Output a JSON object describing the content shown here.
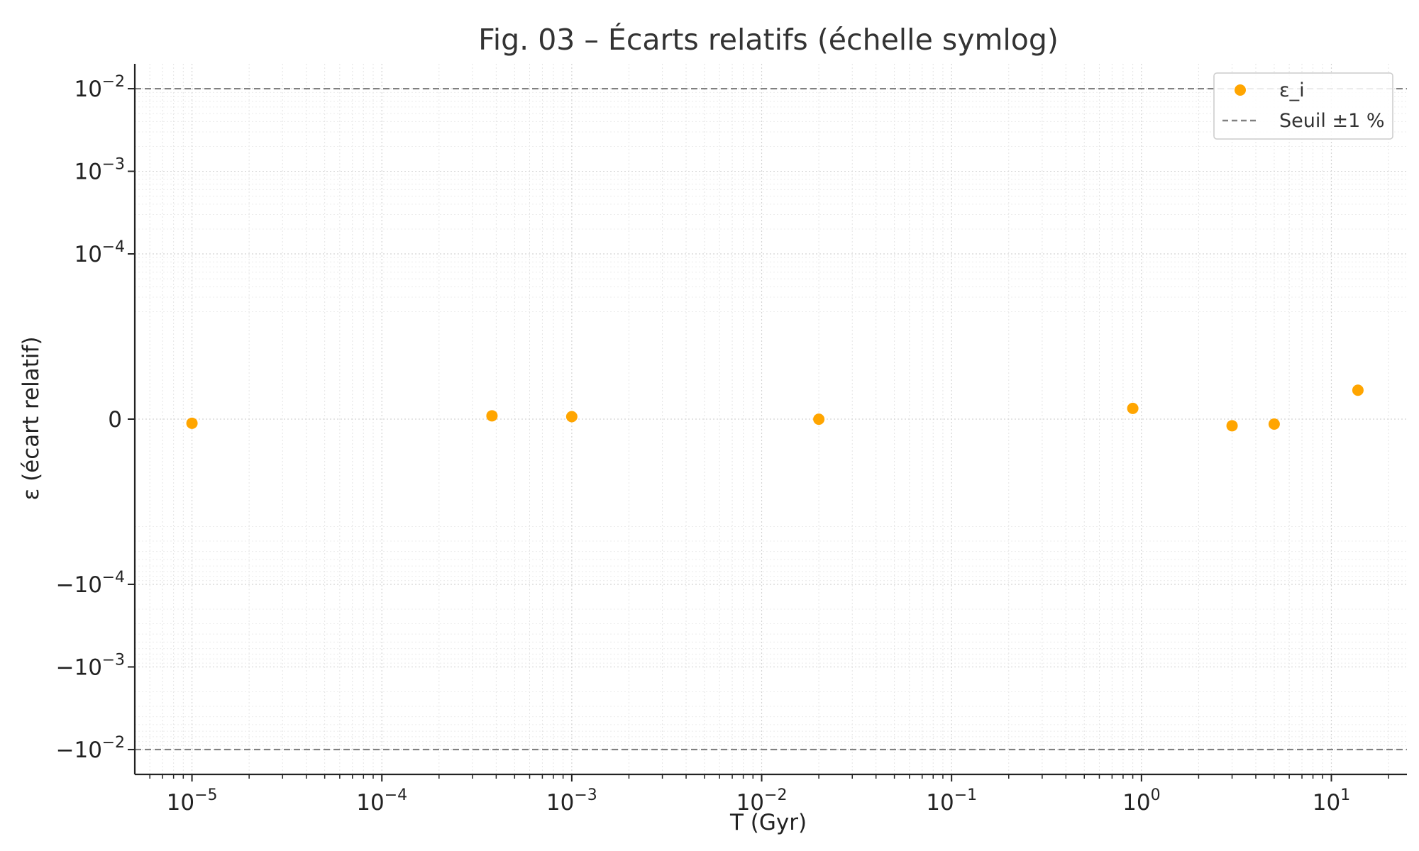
{
  "chart_data": {
    "type": "scatter",
    "title": "Fig. 03 – Écarts relatifs (échelle symlog)",
    "xlabel": "T (Gyr)",
    "ylabel": "ε (écart relatif)",
    "x_scale": "log",
    "y_scale": "symlog",
    "y_linthresh": 1e-05,
    "xlim": [
      5e-06,
      25
    ],
    "ylim": [
      -0.02,
      0.02
    ],
    "grid": true,
    "legend_position": "top-right",
    "x_ticks": [
      {
        "value": 1e-05,
        "base": "10",
        "exp": "−5"
      },
      {
        "value": 0.0001,
        "base": "10",
        "exp": "−4"
      },
      {
        "value": 0.001,
        "base": "10",
        "exp": "−3"
      },
      {
        "value": 0.01,
        "base": "10",
        "exp": "−2"
      },
      {
        "value": 0.1,
        "base": "10",
        "exp": "−1"
      },
      {
        "value": 1,
        "base": "10",
        "exp": "0"
      },
      {
        "value": 10,
        "base": "10",
        "exp": "1"
      }
    ],
    "y_ticks": [
      {
        "value": 0.01,
        "base": "10",
        "exp": "−2"
      },
      {
        "value": 0.001,
        "base": "10",
        "exp": "−3"
      },
      {
        "value": 0.0001,
        "base": "10",
        "exp": "−4"
      },
      {
        "value": 0,
        "base": "0",
        "exp": ""
      },
      {
        "value": -0.0001,
        "base": "−10",
        "exp": "−4"
      },
      {
        "value": -0.001,
        "base": "−10",
        "exp": "−3"
      },
      {
        "value": -0.01,
        "base": "−10",
        "exp": "−2"
      }
    ],
    "series": [
      {
        "name": "ε_i",
        "color": "#FFA500",
        "marker": "circle",
        "x": [
          1e-05,
          0.00038,
          0.001,
          0.02,
          0.9,
          3,
          5,
          13.8
        ],
        "y": [
          -5e-07,
          4e-07,
          3e-07,
          -1e-08,
          1.3e-06,
          -8e-07,
          -6e-07,
          3.5e-06
        ]
      }
    ],
    "reference_lines": [
      {
        "name": "Seuil ±1 %",
        "values": [
          0.01,
          -0.01
        ],
        "color": "#808080",
        "style": "dashed"
      }
    ]
  }
}
